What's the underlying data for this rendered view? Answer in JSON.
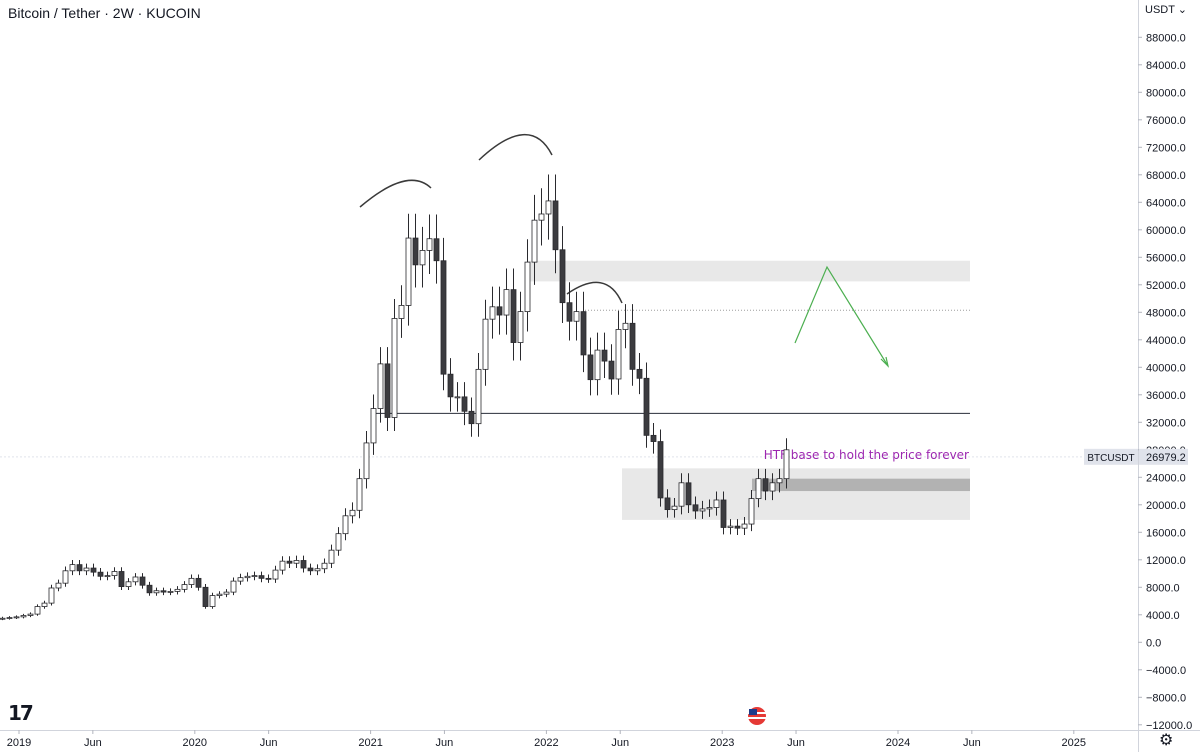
{
  "header": {
    "title": "Bitcoin / Tether · 2W · KUCOIN",
    "currency": "USDT ⌄"
  },
  "annotation_text": "HTF base to hold the price forever",
  "last_price": {
    "symbol": "BTCUSDT",
    "value": "26979.2"
  },
  "icons": {
    "logo": "tradingview-logo-icon",
    "settings": "gear-icon",
    "flag": "us-flag-icon"
  },
  "colors": {
    "up": "#ffffff",
    "down": "#3b3b3f",
    "wick": "#2a2a2e",
    "zone": "#e8e8e8",
    "zone_dark": "#b2b2b2",
    "annotation": "#9c27b0",
    "projection": "#4caf50"
  },
  "chart_data": {
    "type": "candlestick",
    "title": "Bitcoin / Tether · 2W · KUCOIN",
    "interval": "2W",
    "y_axis": {
      "ticks": [
        88000,
        84000,
        80000,
        76000,
        72000,
        68000,
        64000,
        60000,
        56000,
        52000,
        48000,
        44000,
        40000,
        36000,
        32000,
        28000,
        24000,
        20000,
        16000,
        12000,
        8000,
        4000,
        0,
        -4000,
        -8000,
        -12000
      ],
      "tick_labels": [
        "88000.0",
        "84000.0",
        "80000.0",
        "76000.0",
        "72000.0",
        "68000.0",
        "64000.0",
        "60000.0",
        "56000.0",
        "52000.0",
        "48000.0",
        "44000.0",
        "40000.0",
        "36000.0",
        "32000.0",
        "28000.0",
        "24000.0",
        "20000.0",
        "16000.0",
        "12000.0",
        "8000.0",
        "4000.0",
        "0.0",
        "−4000.0",
        "−8000.0",
        "−12000.0"
      ]
    },
    "x_axis": {
      "ticks": [
        {
          "label": "2019",
          "t": 2019.0
        },
        {
          "label": "Jun",
          "t": 2019.42
        },
        {
          "label": "2020",
          "t": 2020.0
        },
        {
          "label": "Jun",
          "t": 2020.42
        },
        {
          "label": "2021",
          "t": 2021.0
        },
        {
          "label": "Jun",
          "t": 2021.42
        },
        {
          "label": "2022",
          "t": 2022.0
        },
        {
          "label": "Jun",
          "t": 2022.42
        },
        {
          "label": "2023",
          "t": 2023.0
        },
        {
          "label": "Jun",
          "t": 2023.42
        },
        {
          "label": "2024",
          "t": 2024.0
        },
        {
          "label": "Jun",
          "t": 2024.42
        },
        {
          "label": "2025",
          "t": 2025.0
        }
      ]
    },
    "candles_close": [
      3500,
      3600,
      3700,
      3900,
      4100,
      5200,
      5700,
      7900,
      8600,
      10400,
      11300,
      10400,
      10800,
      10200,
      9600,
      9700,
      10300,
      8100,
      8800,
      9500,
      8300,
      7200,
      7500,
      7300,
      7400,
      7700,
      8400,
      9300,
      8000,
      5200,
      6800,
      7000,
      7300,
      8900,
      9400,
      9600,
      9700,
      9300,
      9200,
      10500,
      11800,
      11500,
      11900,
      10800,
      10400,
      10700,
      11500,
      13400,
      15800,
      18400,
      19200,
      23800,
      29000,
      34000,
      40500,
      32700,
      47100,
      49000,
      58800,
      54900,
      57000,
      58700,
      55500,
      39000,
      35700,
      35700,
      33600,
      31800,
      39700,
      47000,
      48800,
      47600,
      51300,
      43600,
      48100,
      55300,
      61400,
      62300,
      64200,
      57100,
      49400,
      46700,
      48100,
      41800,
      38200,
      42500,
      40900,
      38300,
      45500,
      46400,
      39700,
      38400,
      30100,
      29200,
      21000,
      19300,
      19800,
      23200,
      20000,
      19100,
      19400,
      19600,
      20700,
      16700,
      16900,
      16600,
      17200,
      20900,
      23800,
      22000,
      23200,
      23800,
      28000
    ],
    "levels": [
      {
        "name": "support-line",
        "value": 33300
      },
      {
        "name": "dotted-resistance",
        "value": 48300
      }
    ],
    "zones": [
      {
        "name": "resistance-zone",
        "from": 52500,
        "to": 55500
      },
      {
        "name": "htf-base-zone",
        "from": 17800,
        "to": 25300
      },
      {
        "name": "htf-base-core",
        "from": 22000,
        "to": 23800
      }
    ],
    "annotations": [
      "HTF base to hold the price forever"
    ],
    "last_price": 26979.2
  }
}
